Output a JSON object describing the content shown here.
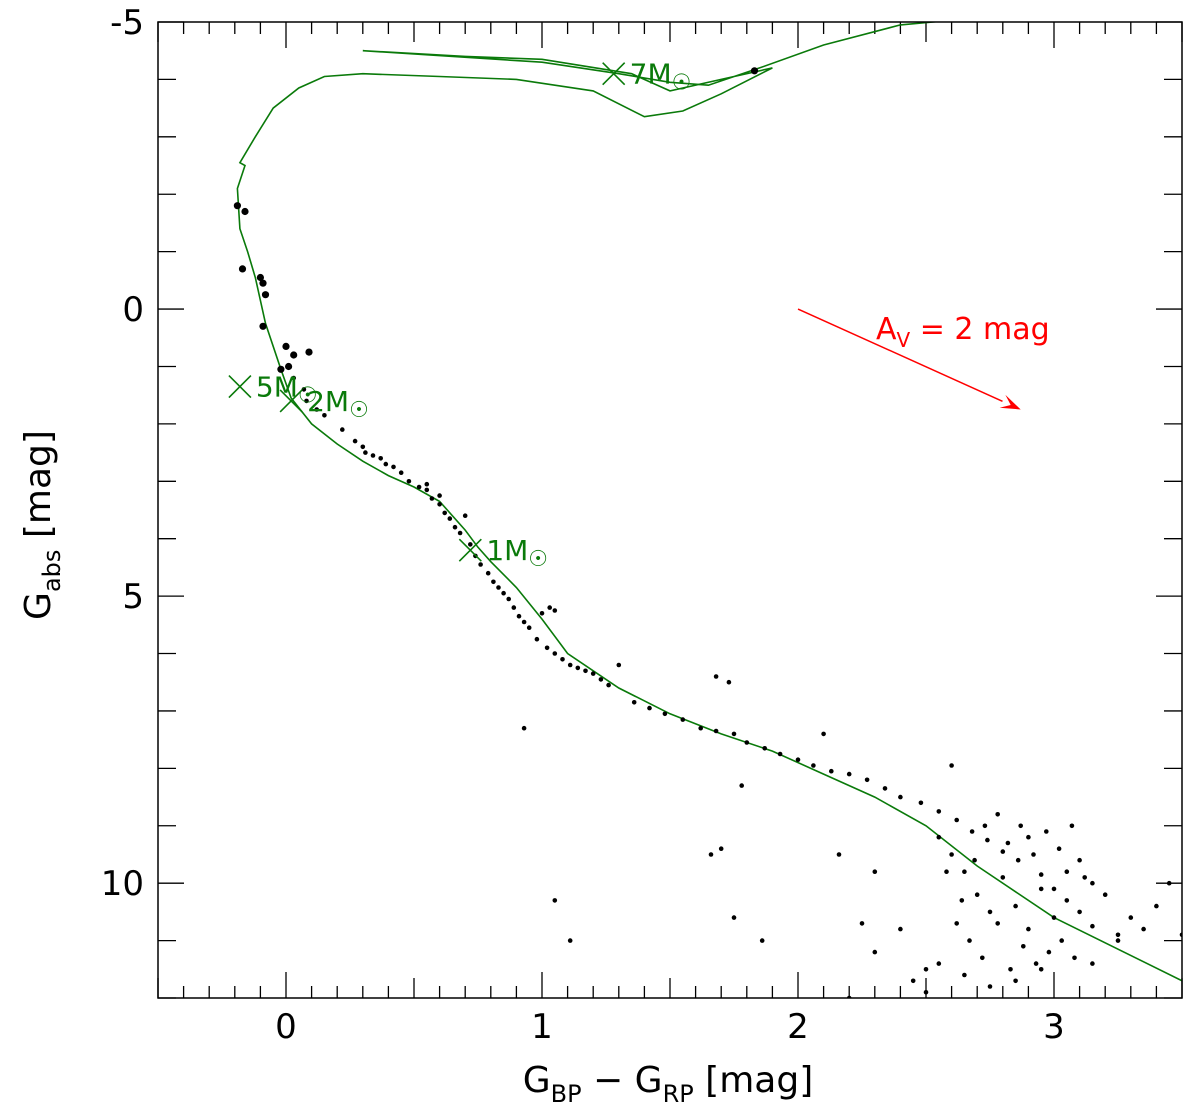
{
  "chart_data": {
    "type": "scatter",
    "title": "",
    "xlabel": {
      "main": "G",
      "sub1": "BP",
      "mid": " − G",
      "sub2": "RP",
      "tail": " [mag]"
    },
    "ylabel": {
      "main": "G",
      "sub": "abs",
      "tail": " [mag]"
    },
    "xlim": [
      -0.5,
      3.5
    ],
    "ylim": [
      12.0,
      -5.0
    ],
    "xticks": [
      0,
      1,
      2,
      3
    ],
    "xtick_labels": [
      "0",
      "1",
      "2",
      "3"
    ],
    "yticks": [
      -5,
      0,
      5,
      10
    ],
    "ytick_labels": [
      "-5",
      "0",
      "5",
      "10"
    ],
    "grid": false,
    "colors": {
      "isochrone": "#0a7a0a",
      "stars": "#000000",
      "extinction": "#ff0000"
    },
    "isochrone": {
      "name": "isochrone",
      "x": [
        3.5,
        3.0,
        2.7,
        2.5,
        2.3,
        2.1,
        1.9,
        1.7,
        1.5,
        1.3,
        1.1,
        1.0,
        0.9,
        0.8,
        0.75,
        0.7,
        0.6,
        0.5,
        0.4,
        0.3,
        0.2,
        0.1,
        0.02,
        -0.02,
        -0.08,
        -0.12,
        -0.15,
        -0.18,
        -0.19,
        -0.16,
        -0.18,
        -0.12,
        -0.05,
        0.05,
        0.15,
        0.3,
        0.6,
        0.9,
        1.2,
        1.4,
        1.55,
        1.7,
        1.9,
        1.7,
        1.5,
        1.35,
        1.0,
        0.7,
        0.3,
        1.0,
        1.3,
        1.5,
        1.65,
        1.85,
        2.1,
        2.4,
        2.65
      ],
      "y": [
        11.7,
        10.6,
        9.7,
        9.0,
        8.5,
        8.1,
        7.7,
        7.4,
        7.05,
        6.6,
        6.0,
        5.4,
        4.85,
        4.4,
        4.15,
        3.85,
        3.35,
        3.1,
        2.9,
        2.65,
        2.35,
        2.0,
        1.55,
        1.05,
        0.25,
        -0.55,
        -1.0,
        -1.4,
        -2.1,
        -2.5,
        -2.55,
        -3.0,
        -3.5,
        -3.85,
        -4.05,
        -4.1,
        -4.05,
        -4.0,
        -3.8,
        -3.35,
        -3.45,
        -3.75,
        -4.2,
        -4.0,
        -3.8,
        -4.1,
        -4.35,
        -4.4,
        -4.5,
        -4.3,
        -4.1,
        -3.95,
        -3.9,
        -4.2,
        -4.6,
        -4.95,
        -5.05
      ]
    },
    "mass_markers": [
      {
        "label": "7M",
        "x": 1.28,
        "y": -4.1
      },
      {
        "label": "5M",
        "x": -0.18,
        "y": 1.35
      },
      {
        "label": "2M",
        "x": 0.02,
        "y": 1.6
      },
      {
        "label": "1M",
        "x": 0.72,
        "y": 4.2
      }
    ],
    "sun_symbol": "☉",
    "extinction_vector": {
      "label_main": "A",
      "label_sub": "V",
      "label_tail": " = 2 mag",
      "x_start": 2.0,
      "y_start": 0.0,
      "x_end": 2.87,
      "y_end": 1.75
    },
    "stars": [
      [
        1.83,
        -4.15
      ],
      [
        -0.19,
        -1.8
      ],
      [
        -0.16,
        -1.7
      ],
      [
        -0.17,
        -0.7
      ],
      [
        -0.1,
        -0.55
      ],
      [
        -0.09,
        -0.45
      ],
      [
        -0.08,
        -0.25
      ],
      [
        -0.09,
        0.3
      ],
      [
        0.0,
        0.65
      ],
      [
        0.01,
        1.0
      ],
      [
        0.09,
        0.75
      ],
      [
        0.03,
        0.8
      ],
      [
        -0.02,
        1.05
      ],
      [
        0.03,
        1.2
      ],
      [
        0.07,
        1.4
      ],
      [
        0.08,
        1.6
      ],
      [
        0.12,
        1.75
      ],
      [
        0.15,
        1.85
      ],
      [
        0.22,
        2.1
      ],
      [
        0.27,
        2.3
      ],
      [
        0.3,
        2.4
      ],
      [
        0.31,
        2.5
      ],
      [
        0.34,
        2.55
      ],
      [
        0.37,
        2.6
      ],
      [
        0.39,
        2.7
      ],
      [
        0.42,
        2.75
      ],
      [
        0.45,
        2.85
      ],
      [
        0.48,
        3.0
      ],
      [
        0.52,
        3.1
      ],
      [
        0.55,
        3.15
      ],
      [
        0.57,
        3.3
      ],
      [
        0.6,
        3.4
      ],
      [
        0.62,
        3.55
      ],
      [
        0.64,
        3.65
      ],
      [
        0.66,
        3.8
      ],
      [
        0.68,
        3.9
      ],
      [
        0.7,
        3.6
      ],
      [
        0.72,
        4.1
      ],
      [
        0.74,
        4.3
      ],
      [
        0.76,
        4.45
      ],
      [
        0.79,
        4.6
      ],
      [
        0.81,
        4.75
      ],
      [
        0.83,
        4.85
      ],
      [
        0.85,
        4.95
      ],
      [
        0.87,
        5.05
      ],
      [
        0.89,
        5.2
      ],
      [
        0.91,
        5.35
      ],
      [
        0.93,
        5.45
      ],
      [
        0.95,
        5.55
      ],
      [
        0.98,
        5.75
      ],
      [
        1.0,
        5.3
      ],
      [
        1.02,
        5.9
      ],
      [
        1.05,
        6.0
      ],
      [
        1.08,
        6.1
      ],
      [
        1.11,
        6.2
      ],
      [
        1.14,
        6.25
      ],
      [
        1.17,
        6.3
      ],
      [
        1.2,
        6.35
      ],
      [
        1.23,
        6.45
      ],
      [
        1.26,
        6.55
      ],
      [
        1.3,
        6.2
      ],
      [
        1.36,
        6.85
      ],
      [
        1.42,
        6.95
      ],
      [
        1.48,
        7.05
      ],
      [
        1.55,
        7.15
      ],
      [
        1.62,
        7.3
      ],
      [
        1.68,
        7.35
      ],
      [
        1.75,
        7.4
      ],
      [
        1.8,
        7.55
      ],
      [
        1.87,
        7.65
      ],
      [
        1.93,
        7.75
      ],
      [
        2.0,
        7.85
      ],
      [
        2.06,
        7.95
      ],
      [
        2.1,
        7.4
      ],
      [
        2.13,
        8.05
      ],
      [
        2.2,
        8.1
      ],
      [
        2.27,
        8.2
      ],
      [
        2.34,
        8.35
      ],
      [
        2.4,
        8.5
      ],
      [
        2.48,
        8.6
      ],
      [
        2.55,
        8.75
      ],
      [
        2.6,
        7.95
      ],
      [
        2.62,
        8.9
      ],
      [
        2.68,
        9.1
      ],
      [
        2.74,
        9.25
      ],
      [
        2.8,
        9.45
      ],
      [
        2.86,
        9.6
      ],
      [
        2.9,
        9.2
      ],
      [
        2.95,
        9.85
      ],
      [
        3.0,
        10.1
      ],
      [
        3.05,
        10.3
      ],
      [
        3.1,
        10.5
      ],
      [
        3.15,
        10.75
      ],
      [
        3.2,
        10.2
      ],
      [
        3.25,
        10.9
      ],
      [
        3.3,
        10.6
      ],
      [
        3.4,
        10.4
      ],
      [
        3.45,
        10.0
      ],
      [
        3.5,
        10.9
      ],
      [
        2.55,
        9.2
      ],
      [
        2.6,
        9.5
      ],
      [
        2.65,
        9.8
      ],
      [
        2.7,
        10.2
      ],
      [
        2.75,
        10.5
      ],
      [
        2.8,
        9.9
      ],
      [
        2.85,
        10.4
      ],
      [
        2.9,
        10.8
      ],
      [
        2.95,
        10.1
      ],
      [
        3.0,
        10.6
      ],
      [
        3.05,
        9.8
      ],
      [
        3.1,
        9.6
      ],
      [
        3.15,
        10.0
      ],
      [
        2.62,
        10.7
      ],
      [
        2.67,
        11.0
      ],
      [
        2.72,
        11.3
      ],
      [
        2.78,
        10.7
      ],
      [
        2.83,
        11.5
      ],
      [
        2.88,
        11.1
      ],
      [
        2.93,
        11.4
      ],
      [
        2.98,
        11.2
      ],
      [
        3.03,
        11.0
      ],
      [
        3.08,
        11.3
      ],
      [
        2.58,
        9.8
      ],
      [
        2.64,
        10.3
      ],
      [
        2.69,
        9.6
      ],
      [
        2.73,
        9.0
      ],
      [
        2.78,
        8.8
      ],
      [
        2.82,
        9.3
      ],
      [
        2.87,
        9.0
      ],
      [
        2.92,
        9.5
      ],
      [
        2.97,
        9.1
      ],
      [
        3.02,
        9.4
      ],
      [
        3.07,
        9.0
      ],
      [
        3.12,
        9.9
      ],
      [
        2.5,
        11.5
      ],
      [
        2.45,
        11.7
      ],
      [
        2.55,
        11.4
      ],
      [
        2.65,
        11.6
      ],
      [
        2.75,
        11.8
      ],
      [
        2.85,
        11.7
      ],
      [
        2.95,
        11.5
      ],
      [
        3.15,
        11.4
      ],
      [
        3.25,
        11.0
      ],
      [
        3.35,
        10.8
      ],
      [
        0.93,
        7.3
      ],
      [
        1.05,
        10.3
      ],
      [
        1.11,
        11.0
      ],
      [
        1.78,
        8.3
      ],
      [
        1.66,
        9.5
      ],
      [
        1.7,
        9.4
      ],
      [
        1.75,
        10.6
      ],
      [
        1.86,
        11.0
      ],
      [
        2.16,
        9.5
      ],
      [
        2.3,
        9.8
      ],
      [
        2.2,
        12.0
      ],
      [
        2.25,
        10.7
      ],
      [
        2.3,
        11.2
      ],
      [
        2.5,
        11.9
      ],
      [
        2.4,
        10.8
      ],
      [
        1.73,
        6.5
      ],
      [
        1.68,
        6.4
      ],
      [
        1.03,
        5.2
      ],
      [
        1.05,
        5.25
      ],
      [
        0.55,
        3.05
      ],
      [
        0.6,
        3.25
      ]
    ]
  }
}
